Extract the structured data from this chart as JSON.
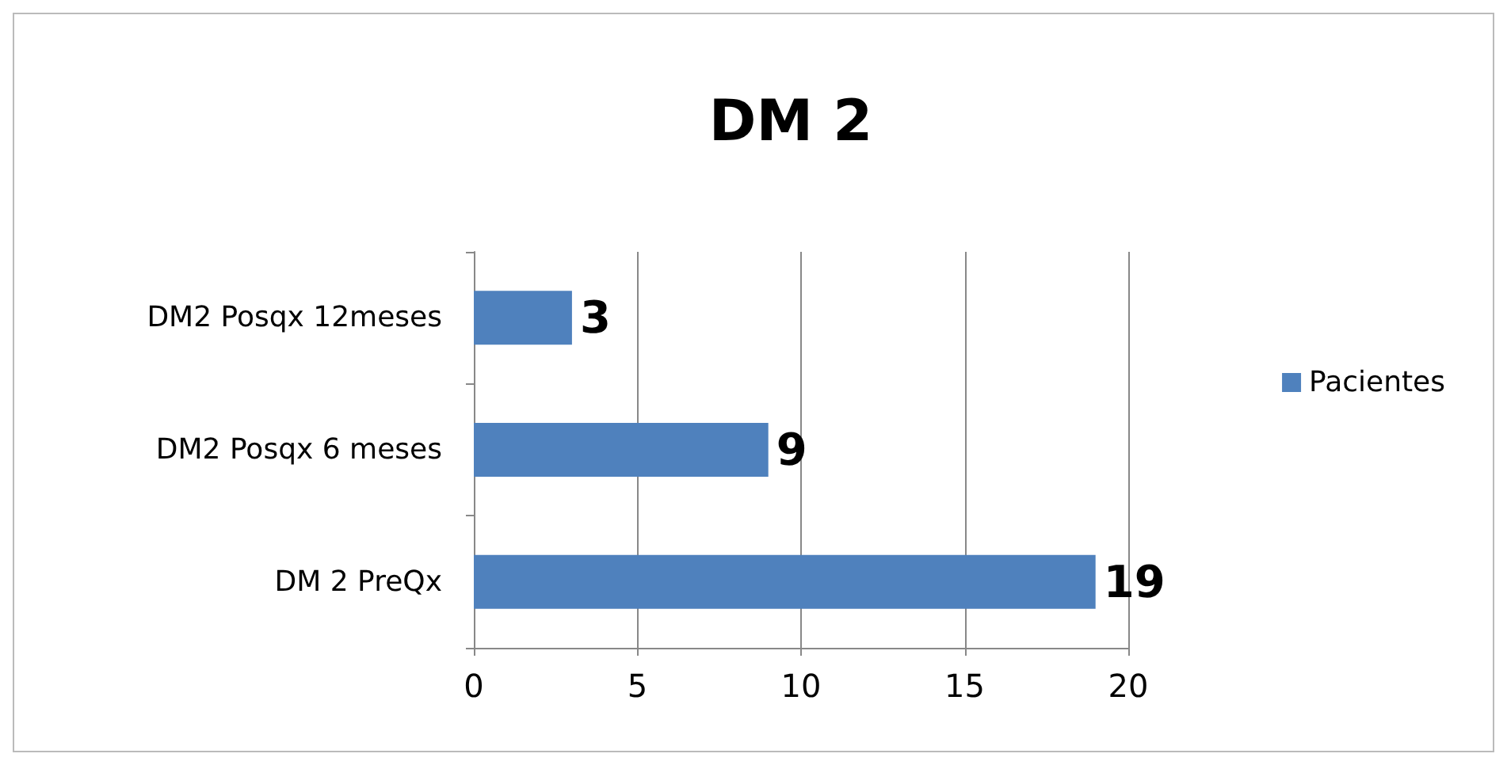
{
  "chart_data": {
    "type": "bar",
    "title": "DM 2",
    "orientation": "horizontal",
    "categories": [
      "DM2 Posqx 12meses",
      "DM2 Posqx 6 meses",
      "DM 2 PreQx"
    ],
    "series": [
      {
        "name": "Pacientes",
        "color": "#4f81bd",
        "values": [
          3,
          9,
          19
        ]
      }
    ],
    "xlim": [
      0,
      20
    ],
    "xticks": [
      0,
      5,
      10,
      15,
      20
    ],
    "grid": "x",
    "legend": "right",
    "data_labels": true
  }
}
